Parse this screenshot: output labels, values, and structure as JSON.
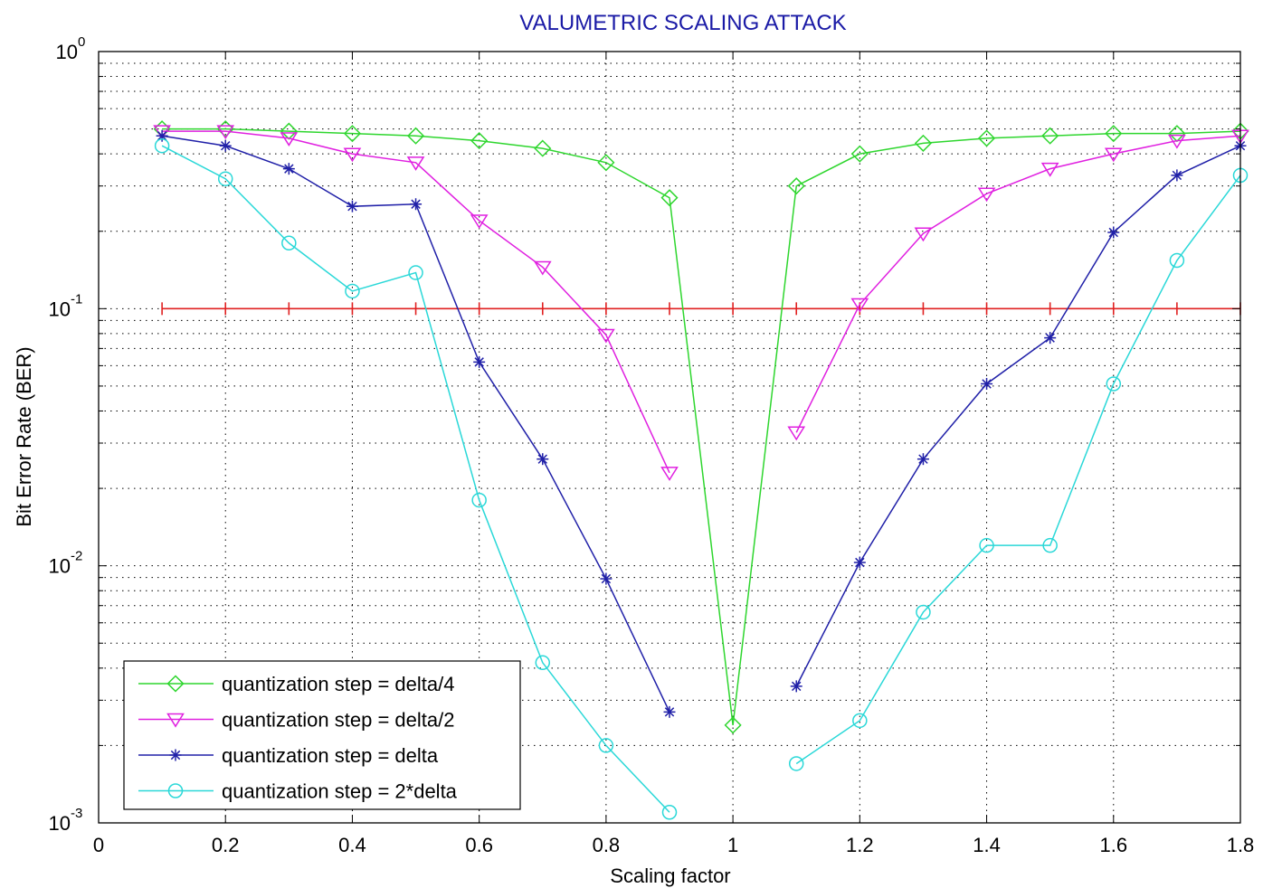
{
  "chart_data": {
    "type": "line",
    "title": "VALUMETRIC SCALING ATTACK",
    "xlabel": "Scaling factor",
    "ylabel": "Bit Error Rate (BER)",
    "xlim": [
      0,
      1.8
    ],
    "ylim": [
      0.001,
      1
    ],
    "yscale": "log",
    "grid": true,
    "legend_position": "bottom-left",
    "x_ticks": [
      "0",
      "0.2",
      "0.4",
      "0.6",
      "0.8",
      "1",
      "1.2",
      "1.4",
      "1.6",
      "1.8"
    ],
    "y_ticks": [
      {
        "base": "10",
        "exp": "-3"
      },
      {
        "base": "10",
        "exp": "-2"
      },
      {
        "base": "10",
        "exp": "-1"
      },
      {
        "base": "10",
        "exp": "0"
      }
    ],
    "threshold": {
      "value": 0.1,
      "color": "#e02020",
      "x": [
        0.1,
        0.2,
        0.3,
        0.4,
        0.5,
        0.6,
        0.7,
        0.8,
        0.9,
        1.0,
        1.1,
        1.2,
        1.3,
        1.4,
        1.5,
        1.6,
        1.7,
        1.8
      ]
    },
    "series": [
      {
        "name": "quantization step = delta/4",
        "color": "#2ed62e",
        "marker": "diamond",
        "segments": [
          {
            "x": [
              0.1,
              0.2,
              0.3,
              0.4,
              0.5,
              0.6,
              0.7,
              0.8,
              0.9,
              1.0,
              1.1,
              1.2,
              1.3,
              1.4,
              1.5,
              1.6,
              1.7,
              1.8
            ],
            "y": [
              0.5,
              0.5,
              0.49,
              0.48,
              0.47,
              0.45,
              0.42,
              0.37,
              0.27,
              0.0024,
              0.3,
              0.4,
              0.44,
              0.46,
              0.47,
              0.48,
              0.48,
              0.49
            ]
          }
        ]
      },
      {
        "name": "quantization step = delta/2",
        "color": "#e020e0",
        "marker": "triangle-down",
        "segments": [
          {
            "x": [
              0.1,
              0.2,
              0.3,
              0.4,
              0.5,
              0.6,
              0.7,
              0.8,
              0.9
            ],
            "y": [
              0.49,
              0.49,
              0.46,
              0.4,
              0.37,
              0.22,
              0.145,
              0.079,
              0.023
            ]
          },
          {
            "x": [
              1.1,
              1.2,
              1.3,
              1.4,
              1.5,
              1.6,
              1.7,
              1.8
            ],
            "y": [
              0.033,
              0.104,
              0.196,
              0.28,
              0.35,
              0.4,
              0.45,
              0.47
            ]
          }
        ]
      },
      {
        "name": "quantization step = delta",
        "color": "#2020a8",
        "marker": "asterisk",
        "segments": [
          {
            "x": [
              0.1,
              0.2,
              0.3,
              0.4,
              0.5,
              0.6,
              0.7,
              0.8,
              0.9
            ],
            "y": [
              0.47,
              0.43,
              0.35,
              0.25,
              0.255,
              0.062,
              0.026,
              0.0089,
              0.0027
            ]
          },
          {
            "x": [
              1.1,
              1.2,
              1.3,
              1.4,
              1.5,
              1.6,
              1.7,
              1.8
            ],
            "y": [
              0.0034,
              0.0103,
              0.026,
              0.051,
              0.077,
              0.198,
              0.33,
              0.43
            ]
          }
        ]
      },
      {
        "name": "quantization step = 2*delta",
        "color": "#2ad8d8",
        "marker": "circle",
        "segments": [
          {
            "x": [
              0.1,
              0.2,
              0.3,
              0.4,
              0.5,
              0.6,
              0.7,
              0.8,
              0.9
            ],
            "y": [
              0.43,
              0.32,
              0.18,
              0.117,
              0.138,
              0.018,
              0.0042,
              0.002,
              0.0011
            ]
          },
          {
            "x": [
              1.1,
              1.2,
              1.3,
              1.4,
              1.5,
              1.6,
              1.7,
              1.8
            ],
            "y": [
              0.0017,
              0.0025,
              0.0066,
              0.012,
              0.012,
              0.051,
              0.154,
              0.33
            ]
          }
        ]
      }
    ]
  }
}
